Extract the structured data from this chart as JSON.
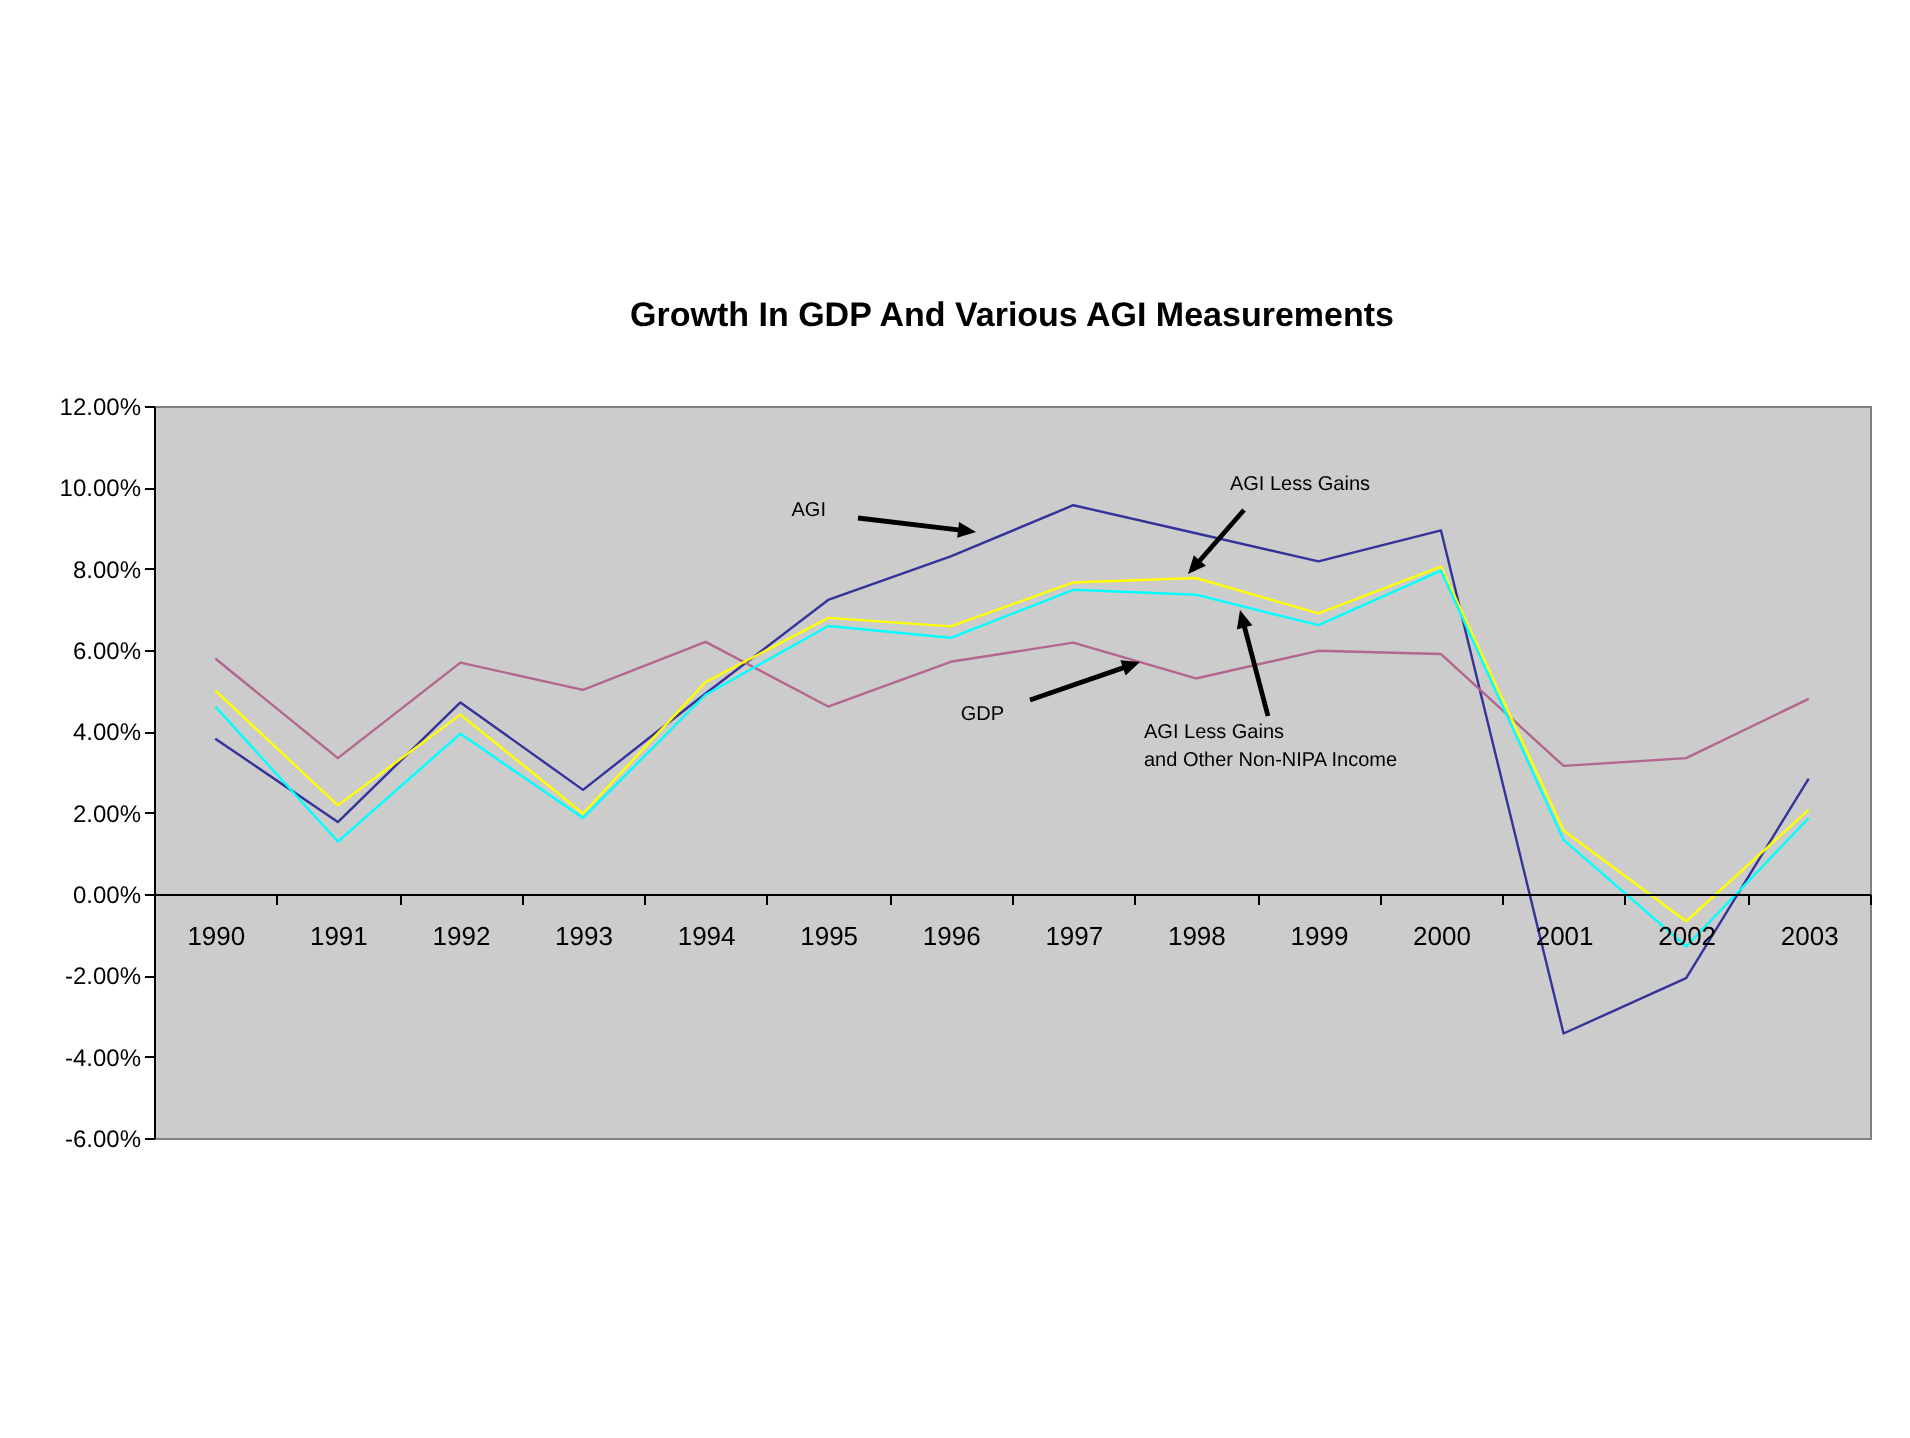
{
  "chart_data": {
    "type": "line",
    "title": "Growth In GDP And Various AGI Measurements",
    "categories": [
      "1990",
      "1991",
      "1992",
      "1993",
      "1994",
      "1995",
      "1996",
      "1997",
      "1998",
      "1999",
      "2000",
      "2001",
      "2002",
      "2003"
    ],
    "series": [
      {
        "color": "#333399",
        "values": [
          3.82,
          1.77,
          4.71,
          2.56,
          4.93,
          7.23,
          8.3,
          9.56,
          8.87,
          8.18,
          8.94,
          -3.43,
          -2.07,
          2.84
        ]
      },
      {
        "color": "#b3668f",
        "values": [
          5.79,
          3.34,
          5.69,
          5.02,
          6.2,
          4.61,
          5.71,
          6.18,
          5.3,
          5.98,
          5.9,
          3.15,
          3.34,
          4.8
        ]
      },
      {
        "color": "#ffff00",
        "values": [
          5.0,
          2.18,
          4.41,
          1.98,
          5.21,
          6.79,
          6.58,
          7.66,
          7.77,
          6.9,
          8.05,
          1.56,
          -0.67,
          2.07
        ]
      },
      {
        "color": "#00ffff",
        "values": [
          4.61,
          1.29,
          3.94,
          1.87,
          4.9,
          6.59,
          6.3,
          7.48,
          7.36,
          6.61,
          7.95,
          1.33,
          -1.29,
          1.87
        ]
      }
    ],
    "ylim": [
      -6,
      12
    ],
    "yticks": [
      {
        "value": -6,
        "label": "-6.00%"
      },
      {
        "value": -4,
        "label": "-4.00%"
      },
      {
        "value": -2,
        "label": "-2.00%"
      },
      {
        "value": 0,
        "label": "0.00%"
      },
      {
        "value": 2,
        "label": "2.00%"
      },
      {
        "value": 4,
        "label": "4.00%"
      },
      {
        "value": 6,
        "label": "6.00%"
      },
      {
        "value": 8,
        "label": "8.00%"
      },
      {
        "value": 10,
        "label": "10.00%"
      },
      {
        "value": 12,
        "label": "12.00%"
      }
    ],
    "annotations": [
      "AGI",
      "GDP",
      "AGI Less Gains",
      "AGI Less Gains\nand Other Non-NIPA Income"
    ],
    "grid": false,
    "legend": false,
    "marker": "none",
    "line_style": "solid"
  }
}
